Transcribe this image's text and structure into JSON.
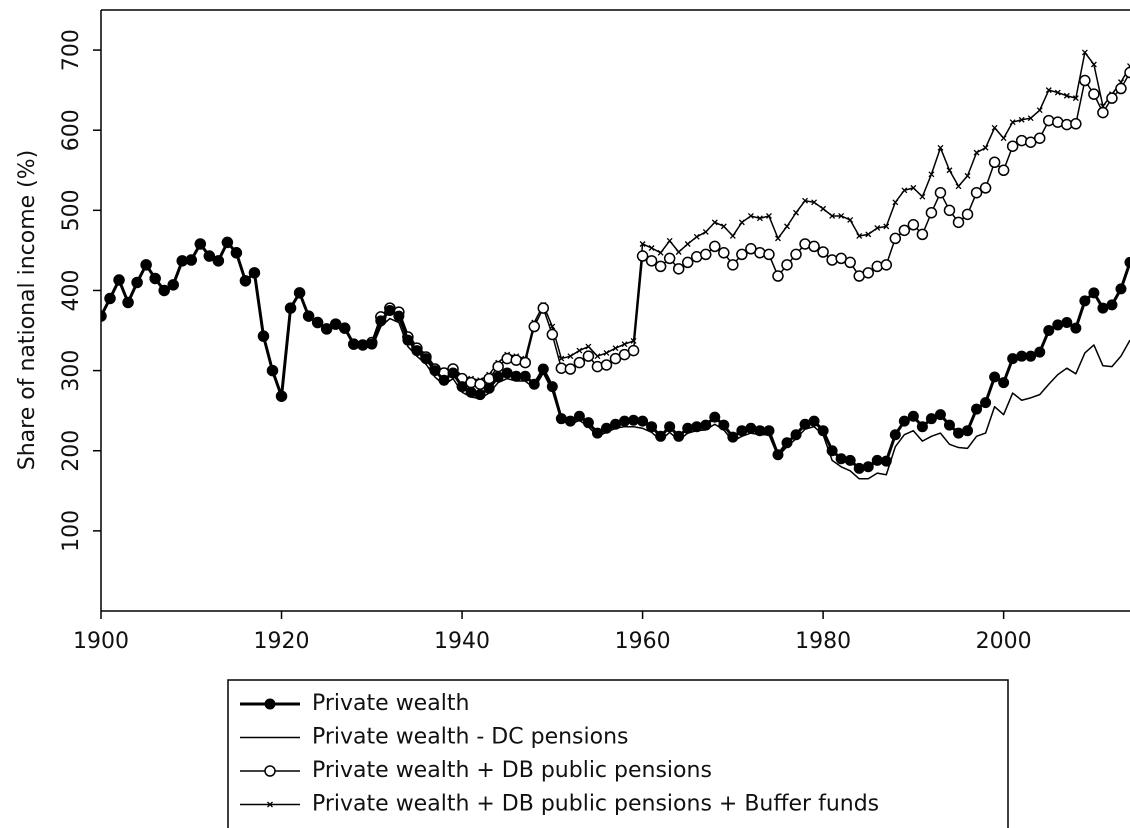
{
  "chart_data": {
    "type": "line",
    "y_label": "Share of national income (%)",
    "x": [
      1900,
      1901,
      1902,
      1903,
      1904,
      1905,
      1906,
      1907,
      1908,
      1909,
      1910,
      1911,
      1912,
      1913,
      1914,
      1915,
      1916,
      1917,
      1918,
      1919,
      1920,
      1921,
      1922,
      1923,
      1924,
      1925,
      1926,
      1927,
      1928,
      1929,
      1930,
      1931,
      1932,
      1933,
      1934,
      1935,
      1936,
      1937,
      1938,
      1939,
      1940,
      1941,
      1942,
      1943,
      1944,
      1945,
      1946,
      1947,
      1948,
      1949,
      1950,
      1951,
      1952,
      1953,
      1954,
      1955,
      1956,
      1957,
      1958,
      1959,
      1960,
      1961,
      1962,
      1963,
      1964,
      1965,
      1966,
      1967,
      1968,
      1969,
      1970,
      1971,
      1972,
      1973,
      1974,
      1975,
      1976,
      1977,
      1978,
      1979,
      1980,
      1981,
      1982,
      1983,
      1984,
      1985,
      1986,
      1987,
      1988,
      1989,
      1990,
      1991,
      1992,
      1993,
      1994,
      1995,
      1996,
      1997,
      1998,
      1999,
      2000,
      2001,
      2002,
      2003,
      2004,
      2005,
      2006,
      2007,
      2008,
      2009,
      2010,
      2011,
      2012,
      2013,
      2014
    ],
    "series": [
      {
        "name": "Private wealth",
        "color": "#000000",
        "marker": "filled-circle",
        "linewidth": 3,
        "values": [
          368,
          390,
          413,
          385,
          410,
          432,
          415,
          400,
          407,
          437,
          438,
          458,
          443,
          437,
          460,
          447,
          412,
          422,
          343,
          300,
          268,
          378,
          397,
          368,
          360,
          352,
          358,
          353,
          333,
          332,
          333,
          362,
          375,
          368,
          338,
          325,
          315,
          300,
          288,
          297,
          280,
          273,
          270,
          278,
          292,
          297,
          293,
          293,
          283,
          302,
          280,
          240,
          237,
          243,
          235,
          222,
          228,
          233,
          237,
          238,
          237,
          230,
          218,
          230,
          218,
          228,
          230,
          232,
          242,
          232,
          217,
          225,
          228,
          225,
          225,
          195,
          210,
          220,
          233,
          237,
          225,
          200,
          190,
          188,
          178,
          180,
          188,
          187,
          220,
          237,
          243,
          230,
          240,
          245,
          232,
          222,
          225,
          252,
          260,
          292,
          285,
          315,
          318,
          318,
          323,
          350,
          357,
          360,
          353,
          387,
          397,
          378,
          382,
          402,
          435
        ]
      },
      {
        "name": "Private wealth - DC pensions",
        "color": "#000000",
        "marker": "none",
        "linewidth": 1.5,
        "values": [
          368,
          390,
          413,
          385,
          410,
          432,
          415,
          400,
          407,
          437,
          438,
          458,
          443,
          437,
          460,
          447,
          412,
          422,
          343,
          300,
          268,
          378,
          397,
          368,
          360,
          352,
          358,
          353,
          333,
          332,
          328,
          355,
          365,
          360,
          330,
          318,
          308,
          292,
          282,
          290,
          273,
          267,
          265,
          272,
          285,
          290,
          287,
          287,
          278,
          297,
          275,
          238,
          233,
          238,
          230,
          218,
          223,
          228,
          230,
          230,
          228,
          223,
          213,
          223,
          213,
          222,
          225,
          226,
          233,
          226,
          212,
          218,
          222,
          220,
          220,
          193,
          205,
          215,
          227,
          230,
          220,
          188,
          180,
          175,
          165,
          165,
          172,
          170,
          205,
          220,
          225,
          212,
          218,
          222,
          208,
          204,
          203,
          218,
          222,
          255,
          245,
          272,
          263,
          266,
          270,
          283,
          295,
          303,
          296,
          322,
          332,
          306,
          305,
          318,
          338
        ]
      },
      {
        "name": "Private wealth + DB public pensions",
        "color": "#000000",
        "marker": "open-circle",
        "linewidth": 1.5,
        "values": [
          368,
          390,
          413,
          385,
          410,
          432,
          415,
          400,
          407,
          437,
          438,
          458,
          443,
          437,
          460,
          447,
          412,
          422,
          343,
          300,
          268,
          378,
          397,
          368,
          360,
          352,
          358,
          353,
          333,
          332,
          335,
          367,
          378,
          373,
          342,
          328,
          317,
          302,
          297,
          302,
          290,
          285,
          283,
          290,
          305,
          315,
          313,
          310,
          355,
          378,
          345,
          303,
          302,
          310,
          318,
          305,
          307,
          315,
          320,
          325,
          443,
          437,
          430,
          440,
          427,
          435,
          442,
          445,
          455,
          447,
          432,
          445,
          452,
          447,
          445,
          418,
          432,
          445,
          458,
          455,
          448,
          438,
          440,
          435,
          418,
          422,
          430,
          432,
          465,
          475,
          482,
          470,
          497,
          522,
          500,
          485,
          495,
          522,
          528,
          560,
          550,
          580,
          587,
          585,
          590,
          612,
          610,
          607,
          608,
          662,
          645,
          622,
          640,
          652,
          672
        ]
      },
      {
        "name": "Private wealth + DB public pensions + Buffer funds",
        "color": "#000000",
        "marker": "cross",
        "linewidth": 1.5,
        "values": [
          368,
          390,
          413,
          385,
          410,
          432,
          415,
          400,
          407,
          437,
          438,
          458,
          443,
          437,
          460,
          447,
          412,
          422,
          343,
          300,
          268,
          378,
          397,
          368,
          360,
          352,
          358,
          353,
          333,
          332,
          336,
          368,
          380,
          375,
          345,
          330,
          320,
          305,
          300,
          305,
          293,
          290,
          288,
          295,
          310,
          320,
          318,
          315,
          360,
          382,
          355,
          315,
          318,
          325,
          330,
          318,
          322,
          328,
          333,
          337,
          458,
          453,
          447,
          462,
          448,
          458,
          467,
          473,
          485,
          480,
          468,
          485,
          493,
          490,
          493,
          465,
          480,
          497,
          512,
          510,
          502,
          493,
          493,
          488,
          468,
          470,
          478,
          480,
          510,
          525,
          528,
          517,
          545,
          578,
          550,
          530,
          543,
          572,
          578,
          603,
          590,
          610,
          613,
          615,
          625,
          650,
          647,
          643,
          640,
          697,
          682,
          630,
          645,
          660,
          680
        ]
      }
    ],
    "xlim": [
      1900,
      2014
    ],
    "xticks": [
      1900,
      1920,
      1940,
      1960,
      1980,
      2000
    ],
    "ylim": [
      0,
      750
    ],
    "yticks": [
      100,
      200,
      300,
      400,
      500,
      600,
      700
    ],
    "grid": false,
    "legend": "bottom"
  }
}
